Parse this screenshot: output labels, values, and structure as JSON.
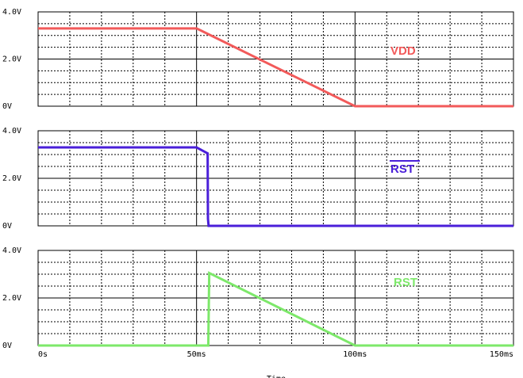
{
  "chart_data": [
    {
      "type": "line",
      "ylim": [
        0,
        4.0
      ],
      "y_ticks": [
        "4.0V",
        "2.0V",
        "0V"
      ],
      "y_tick_values": [
        4.0,
        2.0,
        0
      ],
      "grid": true,
      "series": [
        {
          "name": "VDD",
          "color": "#f25a5a",
          "overline": false,
          "x": [
            0,
            50,
            100,
            150
          ],
          "y": [
            3.3,
            3.3,
            0,
            0
          ]
        }
      ]
    },
    {
      "type": "line",
      "ylim": [
        0,
        4.0
      ],
      "y_ticks": [
        "4.0V",
        "2.0V",
        "0V"
      ],
      "y_tick_values": [
        4.0,
        2.0,
        0
      ],
      "grid": true,
      "series": [
        {
          "name": "RST",
          "color": "#4a1fd9",
          "overline": true,
          "x": [
            0,
            50,
            53.5,
            53.6,
            53.8,
            150
          ],
          "y": [
            3.3,
            3.3,
            3.05,
            0.3,
            0,
            0
          ]
        }
      ]
    },
    {
      "type": "line",
      "ylim": [
        0,
        4.0
      ],
      "y_ticks": [
        "4.0V",
        "2.0V",
        "0V"
      ],
      "y_tick_values": [
        4.0,
        2.0,
        0
      ],
      "grid": true,
      "series": [
        {
          "name": "RST",
          "color": "#7de86a",
          "overline": false,
          "x": [
            0,
            53.7,
            54,
            100,
            150
          ],
          "y": [
            0,
            0,
            3.05,
            0,
            0
          ]
        }
      ]
    }
  ],
  "x_axis": {
    "xlim": [
      0,
      150
    ],
    "ticks": [
      "0s",
      "50ms",
      "100ms",
      "150ms"
    ],
    "tick_values": [
      0,
      50,
      100,
      150
    ],
    "title": "Time"
  }
}
